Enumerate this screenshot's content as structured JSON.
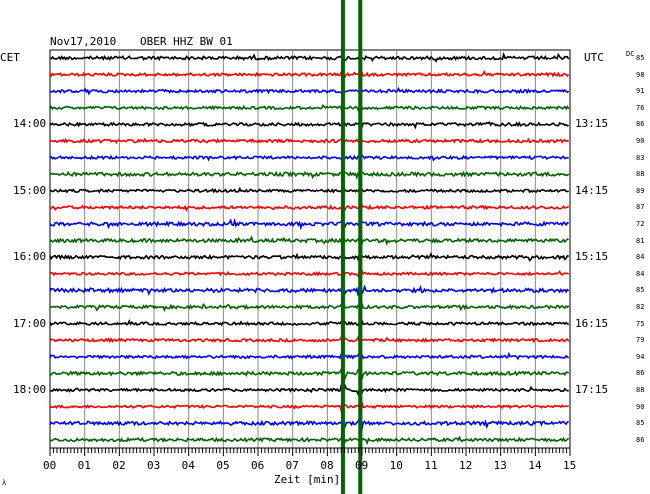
{
  "header": {
    "date": "Nov17,2010",
    "station": "OBER HHZ BW 01",
    "left_zone": "CET",
    "right_zone": "UTC",
    "dc_label": "DC"
  },
  "footer": {
    "xlabel": "Zeit [min]",
    "corner_mark": "λ"
  },
  "chart_data": {
    "type": "line",
    "title": "Nov17,2010 OBER HHZ BW 01",
    "xlabel": "Zeit [min]",
    "xlim": [
      0,
      15
    ],
    "x_ticks": [
      "00",
      "01",
      "02",
      "03",
      "04",
      "05",
      "06",
      "07",
      "08",
      "09",
      "10",
      "11",
      "12",
      "13",
      "14",
      "15"
    ],
    "trace_count": 24,
    "trace_colors": [
      "#000000",
      "#ff0000",
      "#0000ff",
      "#006400"
    ],
    "left_hour_labels": [
      {
        "trace": 4,
        "text": "14:00"
      },
      {
        "trace": 8,
        "text": "15:00"
      },
      {
        "trace": 12,
        "text": "16:00"
      },
      {
        "trace": 16,
        "text": "17:00"
      },
      {
        "trace": 20,
        "text": "18:00"
      }
    ],
    "right_hour_labels": [
      {
        "trace": 4,
        "text": "13:15"
      },
      {
        "trace": 8,
        "text": "14:15"
      },
      {
        "trace": 12,
        "text": "15:15"
      },
      {
        "trace": 16,
        "text": "16:15"
      },
      {
        "trace": 20,
        "text": "17:15"
      }
    ],
    "dc_values": [
      "85",
      "98",
      "91",
      "76",
      "86",
      "90",
      "83",
      "88",
      "89",
      "87",
      "72",
      "81",
      "84",
      "84",
      "85",
      "82",
      "75",
      "79",
      "94",
      "86",
      "88",
      "90",
      "85",
      "86"
    ],
    "event_markers_min": [
      8.45,
      8.95
    ],
    "event_color": "#006400"
  }
}
